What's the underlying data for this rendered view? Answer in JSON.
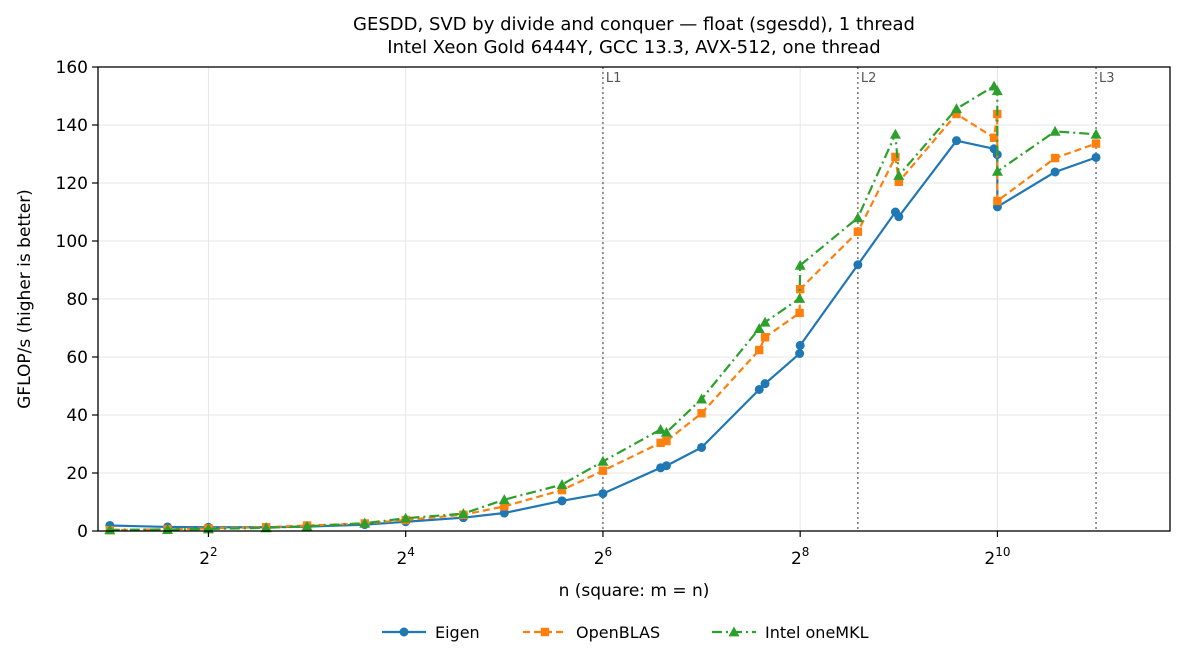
{
  "chart_data": {
    "type": "line",
    "title": "GESDD, SVD by divide and conquer — float (sgesdd), 1 thread",
    "subtitle": "Intel Xeon Gold 6444Y, GCC 13.3, AVX-512, one thread",
    "xlabel": "n (square: m = n)",
    "ylabel": "GFLOP/s (higher is better)",
    "x_scale": "log2",
    "x_ticks": [
      {
        "value": 4,
        "base": "2",
        "exp": "2"
      },
      {
        "value": 16,
        "base": "2",
        "exp": "4"
      },
      {
        "value": 64,
        "base": "2",
        "exp": "6"
      },
      {
        "value": 256,
        "base": "2",
        "exp": "8"
      },
      {
        "value": 1024,
        "base": "2",
        "exp": "10"
      }
    ],
    "y_ticks": [
      "0",
      "20",
      "40",
      "60",
      "80",
      "100",
      "120",
      "140",
      "160"
    ],
    "ylim": [
      0,
      160
    ],
    "grid": true,
    "legend_position": "bottom-center",
    "vlines": [
      {
        "label": "L1",
        "x": 64
      },
      {
        "label": "L2",
        "x": 384
      },
      {
        "label": "L3",
        "x": 2048
      }
    ],
    "x": [
      2,
      3,
      4,
      6,
      8,
      12,
      16,
      24,
      32,
      48,
      64,
      96,
      100,
      128,
      192,
      200,
      255,
      256,
      384,
      500,
      512,
      768,
      1000,
      1023,
      1024,
      1536,
      2048
    ],
    "series": [
      {
        "name": "Eigen",
        "color": "#1f77b4",
        "marker": "circle",
        "dash": "",
        "values": [
          1.9,
          1.4,
          1.3,
          1.3,
          1.5,
          2.2,
          3.2,
          4.6,
          6.2,
          10.4,
          12.9,
          21.8,
          22.5,
          28.8,
          48.8,
          50.8,
          61.2,
          64.0,
          91.8,
          110.0,
          108.4,
          134.6,
          131.8,
          129.8,
          111.8,
          123.8,
          128.8
        ]
      },
      {
        "name": "OpenBLAS",
        "color": "#ff7f0e",
        "marker": "square",
        "dash": "7,4",
        "values": [
          0.3,
          0.6,
          0.9,
          1.3,
          1.9,
          2.6,
          3.8,
          5.6,
          8.5,
          14.1,
          20.8,
          30.4,
          31.0,
          40.6,
          62.4,
          66.8,
          75.2,
          83.4,
          103.2,
          129.0,
          120.4,
          143.8,
          135.6,
          143.8,
          113.8,
          128.6,
          133.6
        ]
      },
      {
        "name": "Intel oneMKL",
        "color": "#2ca02c",
        "marker": "triangle",
        "dash": "10,4,2,4",
        "values": [
          0.4,
          0.5,
          0.7,
          1.1,
          1.6,
          2.7,
          4.4,
          6.0,
          10.8,
          16.0,
          24.0,
          35.0,
          34.0,
          45.5,
          69.8,
          72.0,
          80.2,
          91.6,
          108.0,
          136.8,
          122.6,
          145.6,
          153.4,
          151.8,
          124.0,
          137.8,
          136.8
        ]
      }
    ]
  }
}
